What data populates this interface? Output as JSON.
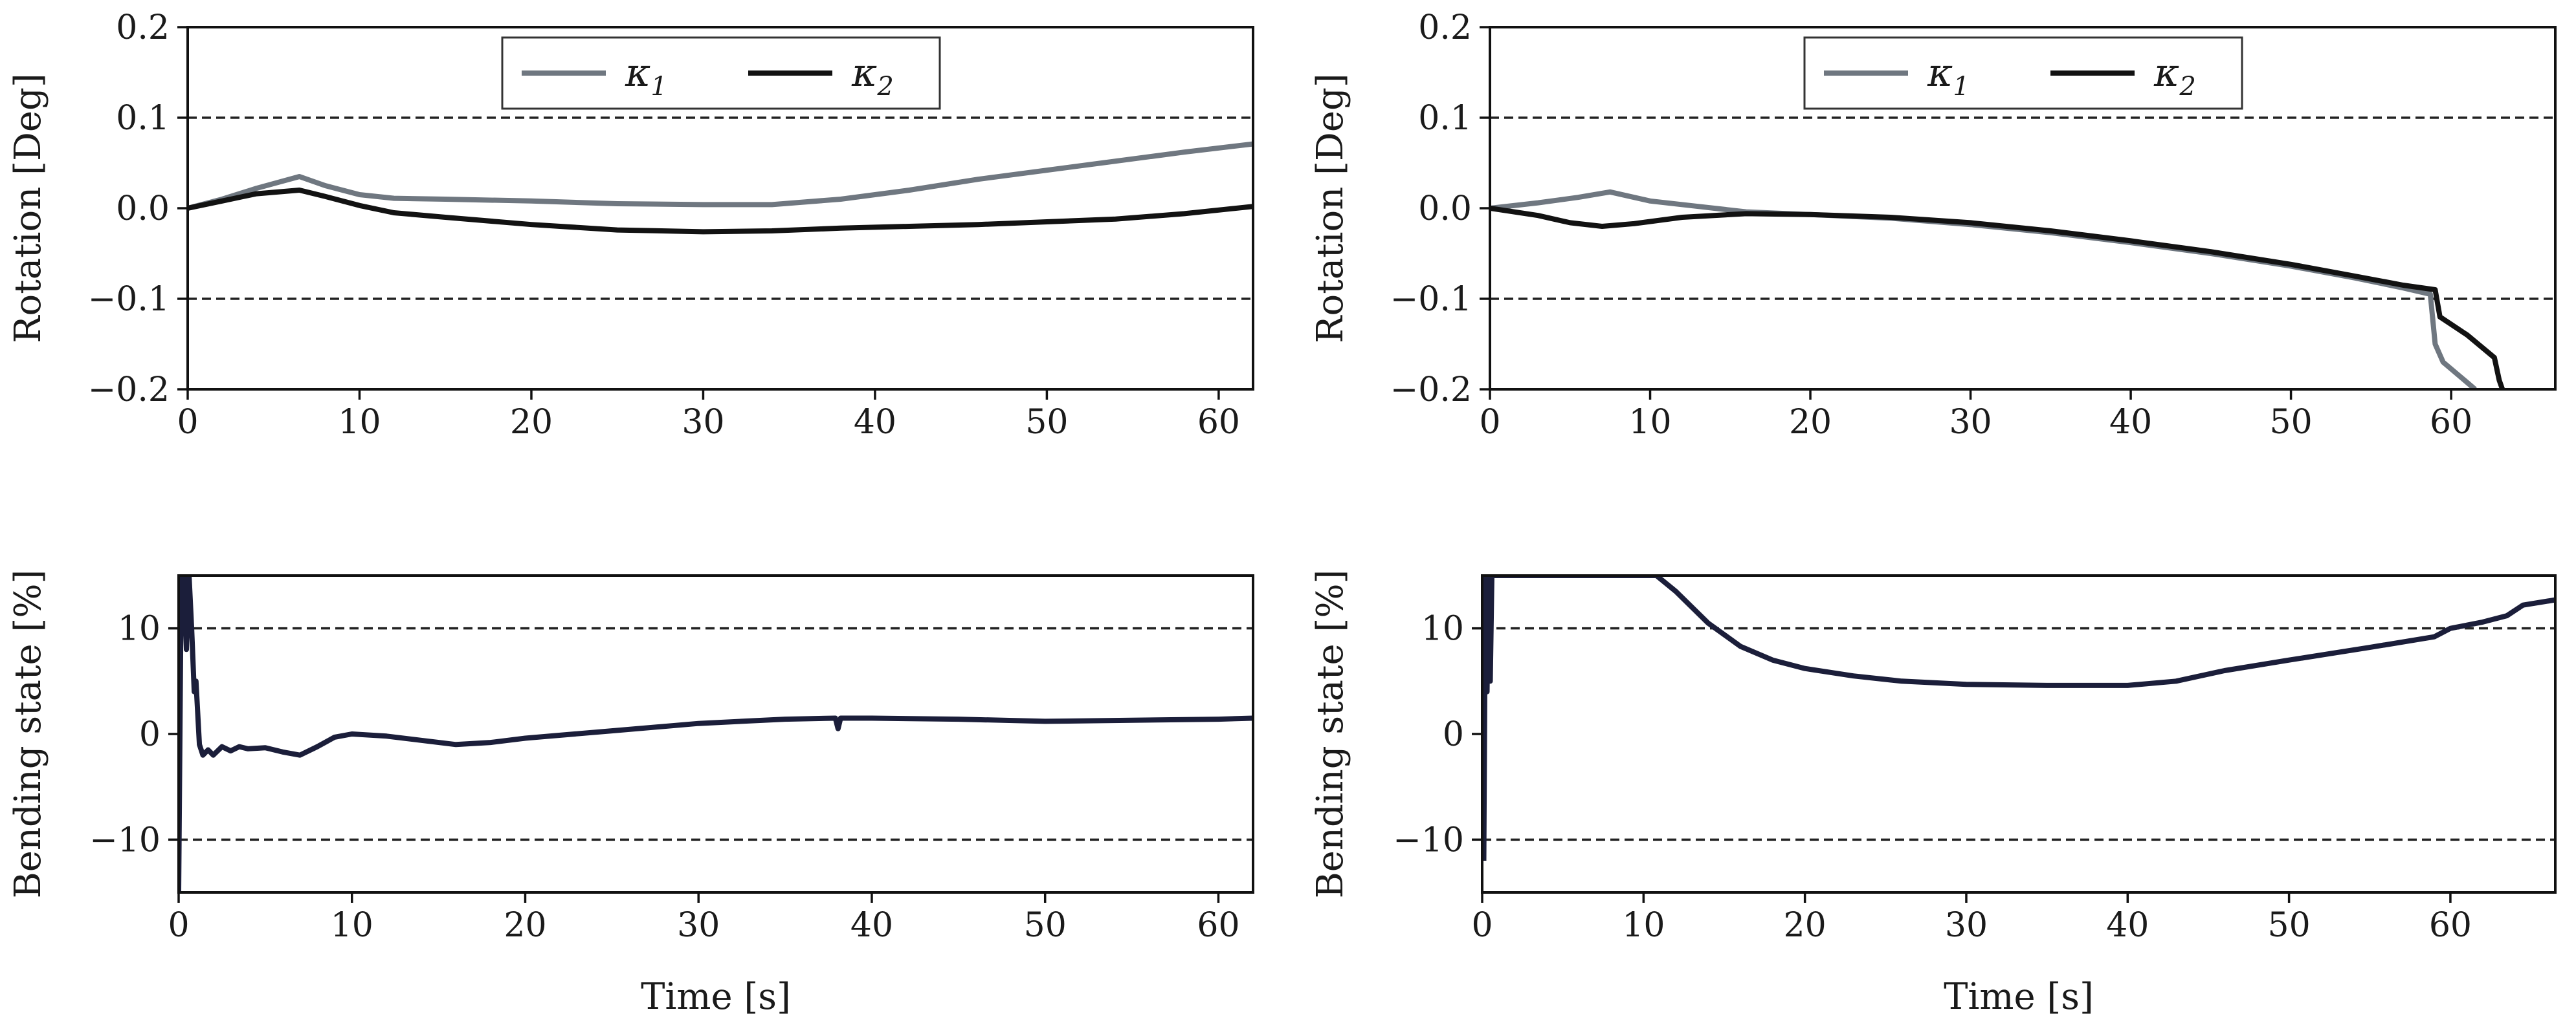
{
  "chart_data": [
    {
      "type": "line",
      "panel": "top-left",
      "title": "",
      "xlabel": "",
      "ylabel": "Rotation [Deg]",
      "xlim": [
        0,
        62
      ],
      "ylim": [
        -0.2,
        0.2
      ],
      "xticks": [
        0,
        10,
        20,
        30,
        40,
        50,
        60
      ],
      "yticks": [
        -0.2,
        -0.1,
        0.0,
        0.1,
        0.2
      ],
      "xtick_labels": [
        "0",
        "10",
        "20",
        "30",
        "40",
        "50",
        "60"
      ],
      "ytick_labels": [
        "−0.2",
        "−0.1",
        "0.0",
        "0.1",
        "0.2"
      ],
      "hlines": [
        0.1,
        -0.1
      ],
      "legend": {
        "position": "top-center",
        "entries": [
          {
            "symbol": "κ",
            "sub": "1"
          },
          {
            "symbol": "κ",
            "sub": "2"
          }
        ]
      },
      "series": [
        {
          "name": "κ1",
          "color": "#6f7780",
          "x": [
            0,
            2,
            4,
            6.5,
            8,
            10,
            12,
            15,
            20,
            25,
            30,
            34,
            38,
            42,
            46,
            50,
            54,
            58,
            62
          ],
          "y": [
            0.0,
            0.01,
            0.022,
            0.035,
            0.025,
            0.015,
            0.011,
            0.01,
            0.008,
            0.005,
            0.004,
            0.004,
            0.01,
            0.02,
            0.032,
            0.042,
            0.052,
            0.062,
            0.071
          ]
        },
        {
          "name": "κ2",
          "color": "#121212",
          "x": [
            0,
            2,
            4,
            6.5,
            8,
            10,
            12,
            15,
            20,
            25,
            30,
            34,
            38,
            42,
            46,
            50,
            54,
            58,
            62
          ],
          "y": [
            0.0,
            0.008,
            0.016,
            0.02,
            0.013,
            0.003,
            -0.005,
            -0.01,
            -0.018,
            -0.024,
            -0.026,
            -0.025,
            -0.022,
            -0.02,
            -0.018,
            -0.015,
            -0.012,
            -0.006,
            0.002
          ]
        }
      ]
    },
    {
      "type": "line",
      "panel": "top-right",
      "title": "",
      "xlabel": "",
      "ylabel": "Rotation [Deg]",
      "xlim": [
        0,
        66.5
      ],
      "ylim": [
        -0.2,
        0.2
      ],
      "xticks": [
        0,
        10,
        20,
        30,
        40,
        50,
        60
      ],
      "yticks": [
        -0.2,
        -0.1,
        0.0,
        0.1,
        0.2
      ],
      "xtick_labels": [
        "0",
        "10",
        "20",
        "30",
        "40",
        "50",
        "60"
      ],
      "ytick_labels": [
        "−0.2",
        "−0.1",
        "0.0",
        "0.1",
        "0.2"
      ],
      "hlines": [
        0.1,
        -0.1
      ],
      "legend": {
        "position": "top-center",
        "entries": [
          {
            "symbol": "κ",
            "sub": "1"
          },
          {
            "symbol": "κ",
            "sub": "2"
          }
        ]
      },
      "series": [
        {
          "name": "κ1",
          "color": "#6f7780",
          "x": [
            0,
            3,
            5.5,
            7.5,
            10,
            13,
            16,
            20,
            25,
            30,
            35,
            40,
            45,
            50,
            54,
            57,
            58.7,
            59,
            59.5,
            60.5,
            61.5
          ],
          "y": [
            0.0,
            0.006,
            0.012,
            0.018,
            0.008,
            0.002,
            -0.004,
            -0.007,
            -0.011,
            -0.018,
            -0.027,
            -0.038,
            -0.05,
            -0.064,
            -0.077,
            -0.088,
            -0.095,
            -0.15,
            -0.17,
            -0.185,
            -0.2
          ]
        },
        {
          "name": "κ2",
          "color": "#121212",
          "x": [
            0,
            3,
            5,
            7,
            9,
            12,
            16,
            20,
            25,
            30,
            35,
            40,
            45,
            50,
            54,
            57,
            59,
            59.3,
            61,
            62.7,
            63,
            63.2
          ],
          "y": [
            0.0,
            -0.008,
            -0.016,
            -0.02,
            -0.017,
            -0.01,
            -0.006,
            -0.007,
            -0.01,
            -0.016,
            -0.025,
            -0.036,
            -0.048,
            -0.062,
            -0.075,
            -0.085,
            -0.09,
            -0.12,
            -0.14,
            -0.165,
            -0.19,
            -0.2
          ]
        }
      ]
    },
    {
      "type": "line",
      "panel": "bottom-left",
      "title": "",
      "xlabel": "Time [s]",
      "ylabel": "Bending state [%]",
      "xlim": [
        0,
        62
      ],
      "ylim": [
        -15,
        15
      ],
      "xticks": [
        0,
        10,
        20,
        30,
        40,
        50,
        60
      ],
      "yticks": [
        -10,
        0,
        10
      ],
      "xtick_labels": [
        "0",
        "10",
        "20",
        "30",
        "40",
        "50",
        "60"
      ],
      "ytick_labels": [
        "−10",
        "0",
        "10"
      ],
      "hlines": [
        10,
        -10
      ],
      "series": [
        {
          "name": "bending state",
          "color": "#1b1e3a",
          "x": [
            0,
            0.15,
            0.3,
            0.45,
            0.6,
            0.75,
            0.9,
            1.0,
            1.2,
            1.4,
            1.7,
            2,
            2.5,
            3,
            3.5,
            4,
            5,
            6,
            7,
            8,
            9,
            10,
            12,
            14,
            16,
            18,
            20,
            25,
            30,
            35,
            37.9,
            38.05,
            38.2,
            40,
            45,
            50,
            55,
            60,
            62
          ],
          "y": [
            -15,
            15,
            15,
            8,
            15,
            10,
            4,
            5,
            -1,
            -2,
            -1.5,
            -2,
            -1.2,
            -1.6,
            -1.2,
            -1.4,
            -1.3,
            -1.7,
            -2,
            -1.2,
            -0.3,
            0,
            -0.2,
            -0.6,
            -1,
            -0.8,
            -0.4,
            0.3,
            1,
            1.4,
            1.5,
            0.5,
            1.5,
            1.5,
            1.4,
            1.2,
            1.3,
            1.4,
            1.5
          ]
        }
      ]
    },
    {
      "type": "line",
      "panel": "bottom-right",
      "title": "",
      "xlabel": "Time [s]",
      "ylabel": "Bending state [%]",
      "xlim": [
        0,
        66.5
      ],
      "ylim": [
        -15,
        15
      ],
      "xticks": [
        0,
        10,
        20,
        30,
        40,
        50,
        60
      ],
      "yticks": [
        -10,
        0,
        10
      ],
      "xtick_labels": [
        "0",
        "10",
        "20",
        "30",
        "40",
        "50",
        "60"
      ],
      "ytick_labels": [
        "−10",
        "0",
        "10"
      ],
      "hlines": [
        10,
        -10
      ],
      "series": [
        {
          "name": "bending state",
          "color": "#1b1e3a",
          "x": [
            0.1,
            0.2,
            0.3,
            0.4,
            0.5,
            0.6,
            0.7,
            10.8,
            12,
            14,
            16,
            18,
            20,
            23,
            26,
            30,
            35,
            40,
            43,
            46,
            50,
            55,
            59,
            60,
            62,
            63.5,
            64.5,
            66.5
          ],
          "y": [
            -12,
            15,
            4,
            15,
            5,
            15,
            15,
            15,
            13.5,
            10.5,
            8.3,
            7,
            6.2,
            5.5,
            5,
            4.7,
            4.6,
            4.6,
            5,
            6,
            7,
            8.2,
            9.2,
            10,
            10.6,
            11.2,
            12.2,
            12.7
          ]
        }
      ]
    }
  ]
}
